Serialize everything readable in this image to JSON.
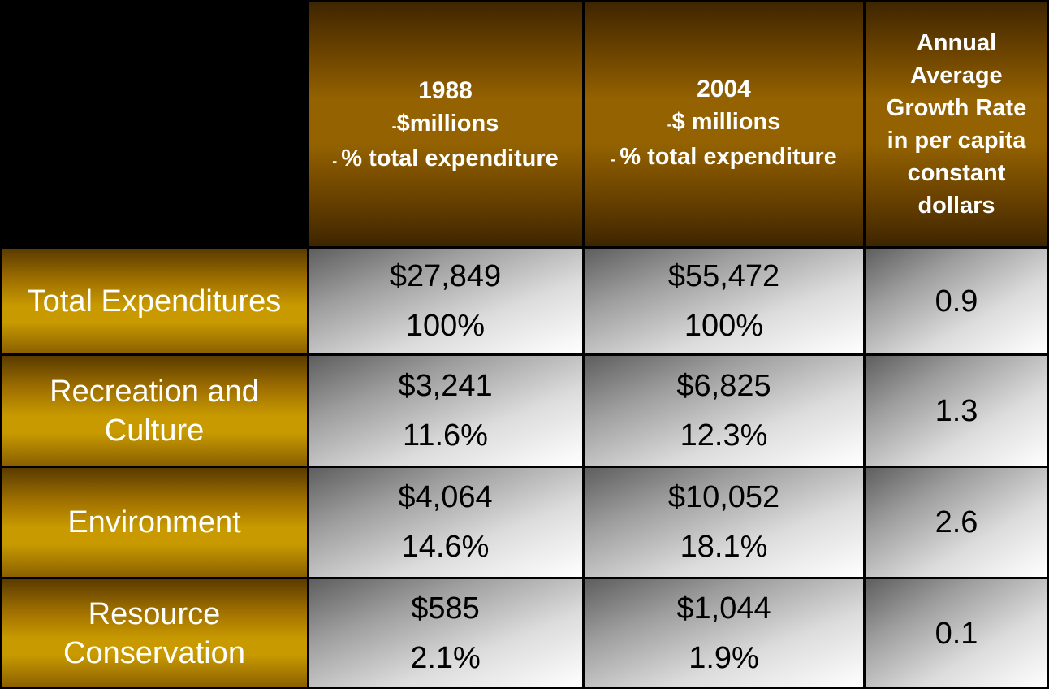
{
  "chart_data": {
    "type": "table",
    "columns": [
      {
        "year": "1988",
        "line2": "$millions",
        "line3": "% total expenditure"
      },
      {
        "year": "2004",
        "line2": "$ millions",
        "line3": "% total expenditure"
      },
      {
        "lines": [
          "Annual",
          "Average",
          "Growth Rate",
          "in per capita",
          "constant",
          "dollars"
        ]
      }
    ],
    "rows": [
      {
        "label": "Total Expenditures",
        "v1988": "$27,849",
        "p1988": "100%",
        "v2004": "$55,472",
        "p2004": "100%",
        "growth": "0.9"
      },
      {
        "label": "Recreation and Culture",
        "v1988": "$3,241",
        "p1988": "11.6%",
        "v2004": "$6,825",
        "p2004": "12.3%",
        "growth": "1.3"
      },
      {
        "label": "Environment",
        "v1988": "$4,064",
        "p1988": "14.6%",
        "v2004": "$10,052",
        "p2004": "18.1%",
        "growth": "2.6"
      },
      {
        "label": "Resource Conservation",
        "v1988": "$585",
        "p1988": "2.1%",
        "v2004": "$1,044",
        "p2004": "1.9%",
        "growth": "0.1"
      }
    ]
  },
  "colors": {
    "background": "#000000",
    "header_gold": "#946200",
    "row_header_gold": "#c89a00",
    "cell_light": "#ffffff",
    "cell_dark": "#5e5e5e"
  }
}
